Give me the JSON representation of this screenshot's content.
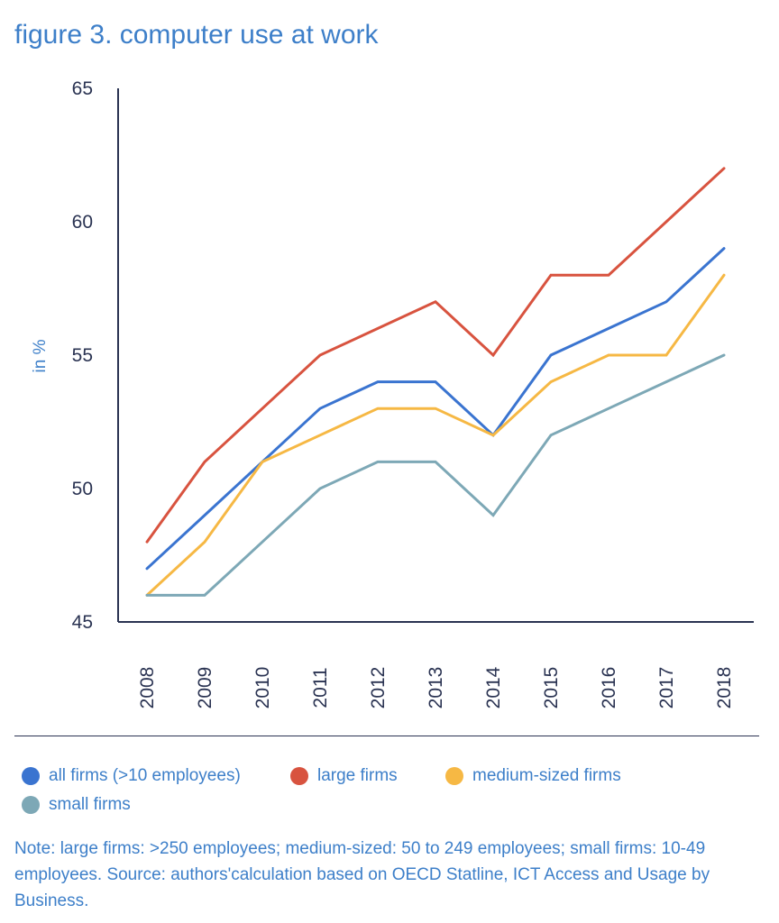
{
  "title": "figure 3. computer use at work",
  "chart_data": {
    "type": "line",
    "title": "figure 3. computer use at work",
    "xlabel": "",
    "ylabel": "in %",
    "x": [
      "2008",
      "2009",
      "2010",
      "2011",
      "2012",
      "2013",
      "2014",
      "2015",
      "2016",
      "2017",
      "2018"
    ],
    "ylim": [
      45,
      65
    ],
    "yticks": [
      "45",
      "50",
      "55",
      "60",
      "65"
    ],
    "grid": false,
    "legend_position": "bottom",
    "series": [
      {
        "name": "all firms (>10 employees)",
        "color": "#3a74d0",
        "values": [
          47,
          49,
          51,
          53,
          54,
          54,
          52,
          55,
          56,
          57,
          59
        ]
      },
      {
        "name": "large firms",
        "color": "#d8533f",
        "values": [
          48,
          51,
          53,
          55,
          56,
          57,
          55,
          58,
          58,
          60,
          62
        ]
      },
      {
        "name": "medium-sized firms",
        "color": "#f6b844",
        "values": [
          46,
          48,
          51,
          52,
          53,
          53,
          52,
          54,
          55,
          55,
          58
        ]
      },
      {
        "name": "small firms",
        "color": "#7da8b6",
        "values": [
          46,
          46,
          48,
          50,
          51,
          51,
          49,
          52,
          53,
          54,
          55
        ]
      }
    ]
  },
  "note": "Note: large firms: >250 employees; medium-sized: 50 to 249 employees; small firms: 10-49 employees. Source: authors'calculation based on OECD Statline, ICT Access and Usage by Business."
}
